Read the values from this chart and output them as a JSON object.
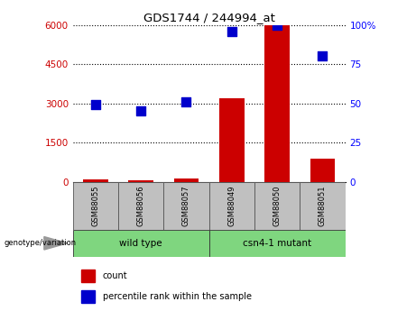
{
  "title": "GDS1744 / 244994_at",
  "samples": [
    "GSM88055",
    "GSM88056",
    "GSM88057",
    "GSM88049",
    "GSM88050",
    "GSM88051"
  ],
  "count_values": [
    100,
    80,
    120,
    3200,
    6000,
    900
  ],
  "percentile_values": [
    49,
    45,
    51,
    96,
    99.5,
    80
  ],
  "ylim_left": [
    0,
    6000
  ],
  "ylim_right": [
    0,
    100
  ],
  "yticks_left": [
    0,
    1500,
    3000,
    4500,
    6000
  ],
  "ytick_labels_left": [
    "0",
    "1500",
    "3000",
    "4500",
    "6000"
  ],
  "yticks_right": [
    0,
    25,
    50,
    75,
    100
  ],
  "ytick_labels_right": [
    "0",
    "25",
    "50",
    "75",
    "100%"
  ],
  "bar_color": "#CC0000",
  "dot_color": "#0000CC",
  "label_count": "count",
  "label_percentile": "percentile rank within the sample",
  "genotype_label": "genotype/variation",
  "group_row_color": "#7FD67F",
  "sample_row_color": "#C0C0C0",
  "wt_label": "wild type",
  "mut_label": "csn4-1 mutant",
  "figsize": [
    4.61,
    3.45
  ],
  "dpi": 100
}
